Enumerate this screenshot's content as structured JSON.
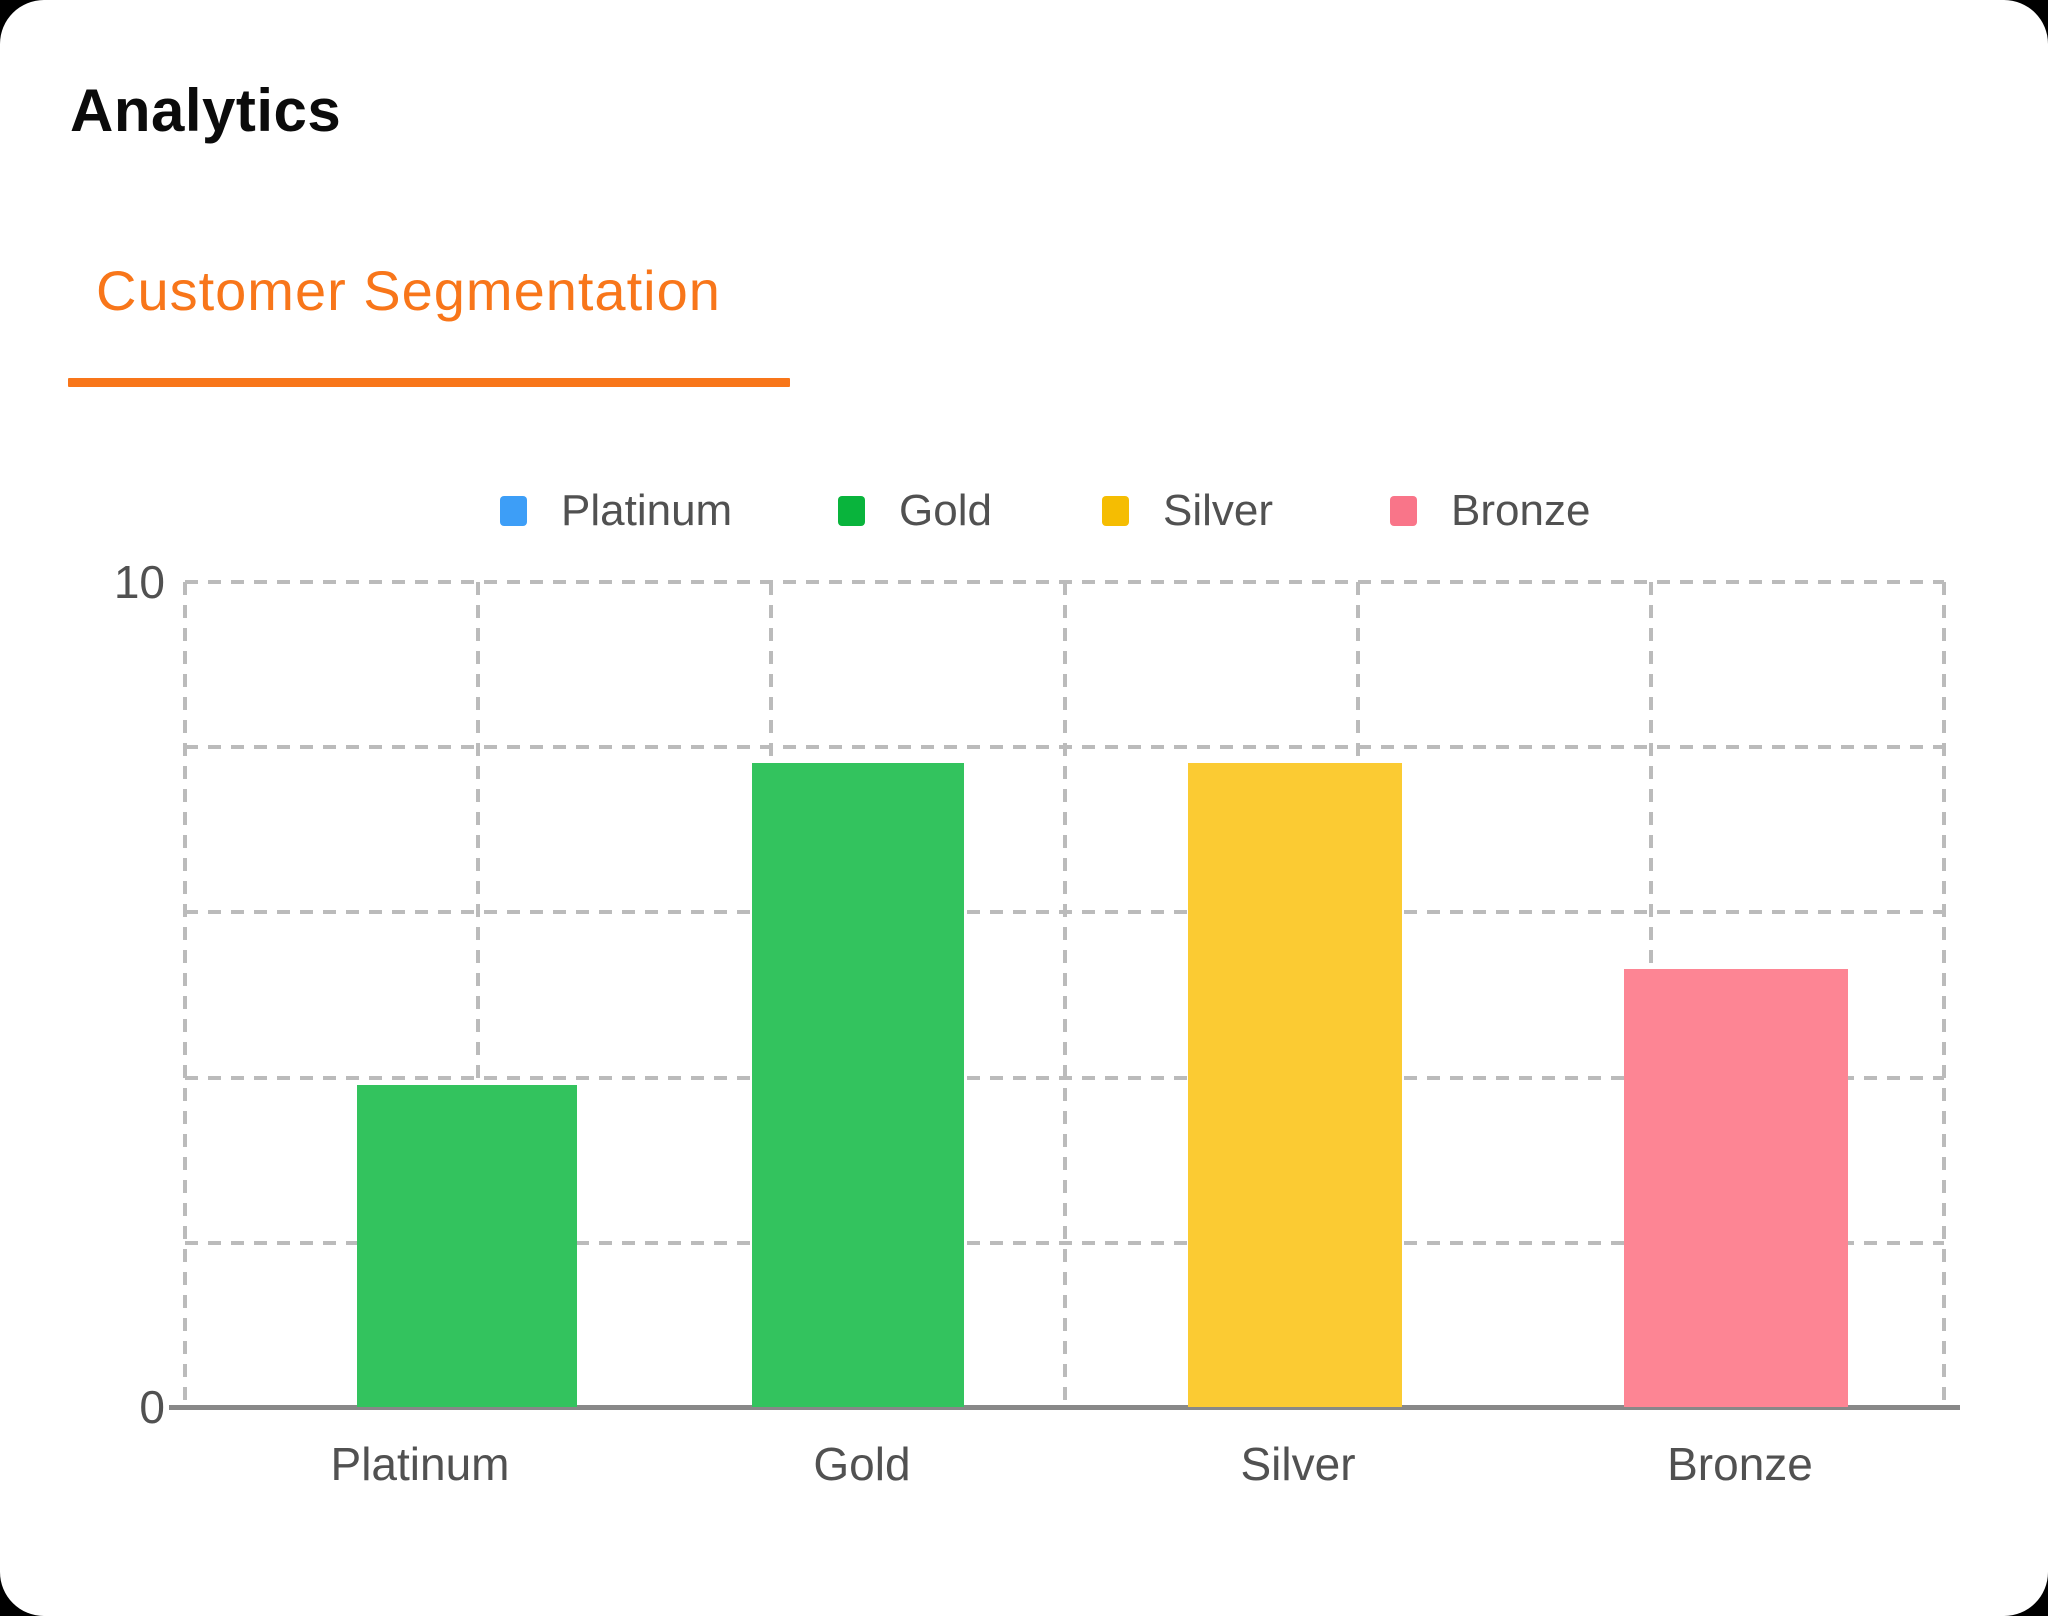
{
  "header": {
    "title": "Analytics"
  },
  "tabs": {
    "active_label": "Customer Segmentation"
  },
  "colors": {
    "page_background": "#000000",
    "card_background": "#FFFFFF",
    "accent_orange": "#F8761A",
    "title_text": "#0B0B0B",
    "axis_text": "#515151",
    "gridline": "#BBBBBB",
    "axis_line": "#888888"
  },
  "chart_data": {
    "type": "bar",
    "title": "Customer Segmentation",
    "categories": [
      "Platinum",
      "Gold",
      "Silver",
      "Bronze"
    ],
    "values": [
      3.9,
      7.8,
      7.8,
      5.3
    ],
    "xlabel": "",
    "ylabel": "",
    "ylim": [
      0,
      10
    ],
    "y_tick_labels": [
      "10",
      "0"
    ],
    "grid": "dashed horizontal lines every 2 units and 7 dashed vertical lines",
    "legend_position": "top",
    "legend": [
      {
        "label": "Platinum",
        "color": "#3D9EF7"
      },
      {
        "label": "Gold",
        "color": "#09B43C"
      },
      {
        "label": "Silver",
        "color": "#F5BD02"
      },
      {
        "label": "Bronze",
        "color": "#F97589"
      }
    ],
    "bar_colors": [
      "#33C35E",
      "#33C35E",
      "#FBCB33",
      "#FD8594"
    ]
  }
}
